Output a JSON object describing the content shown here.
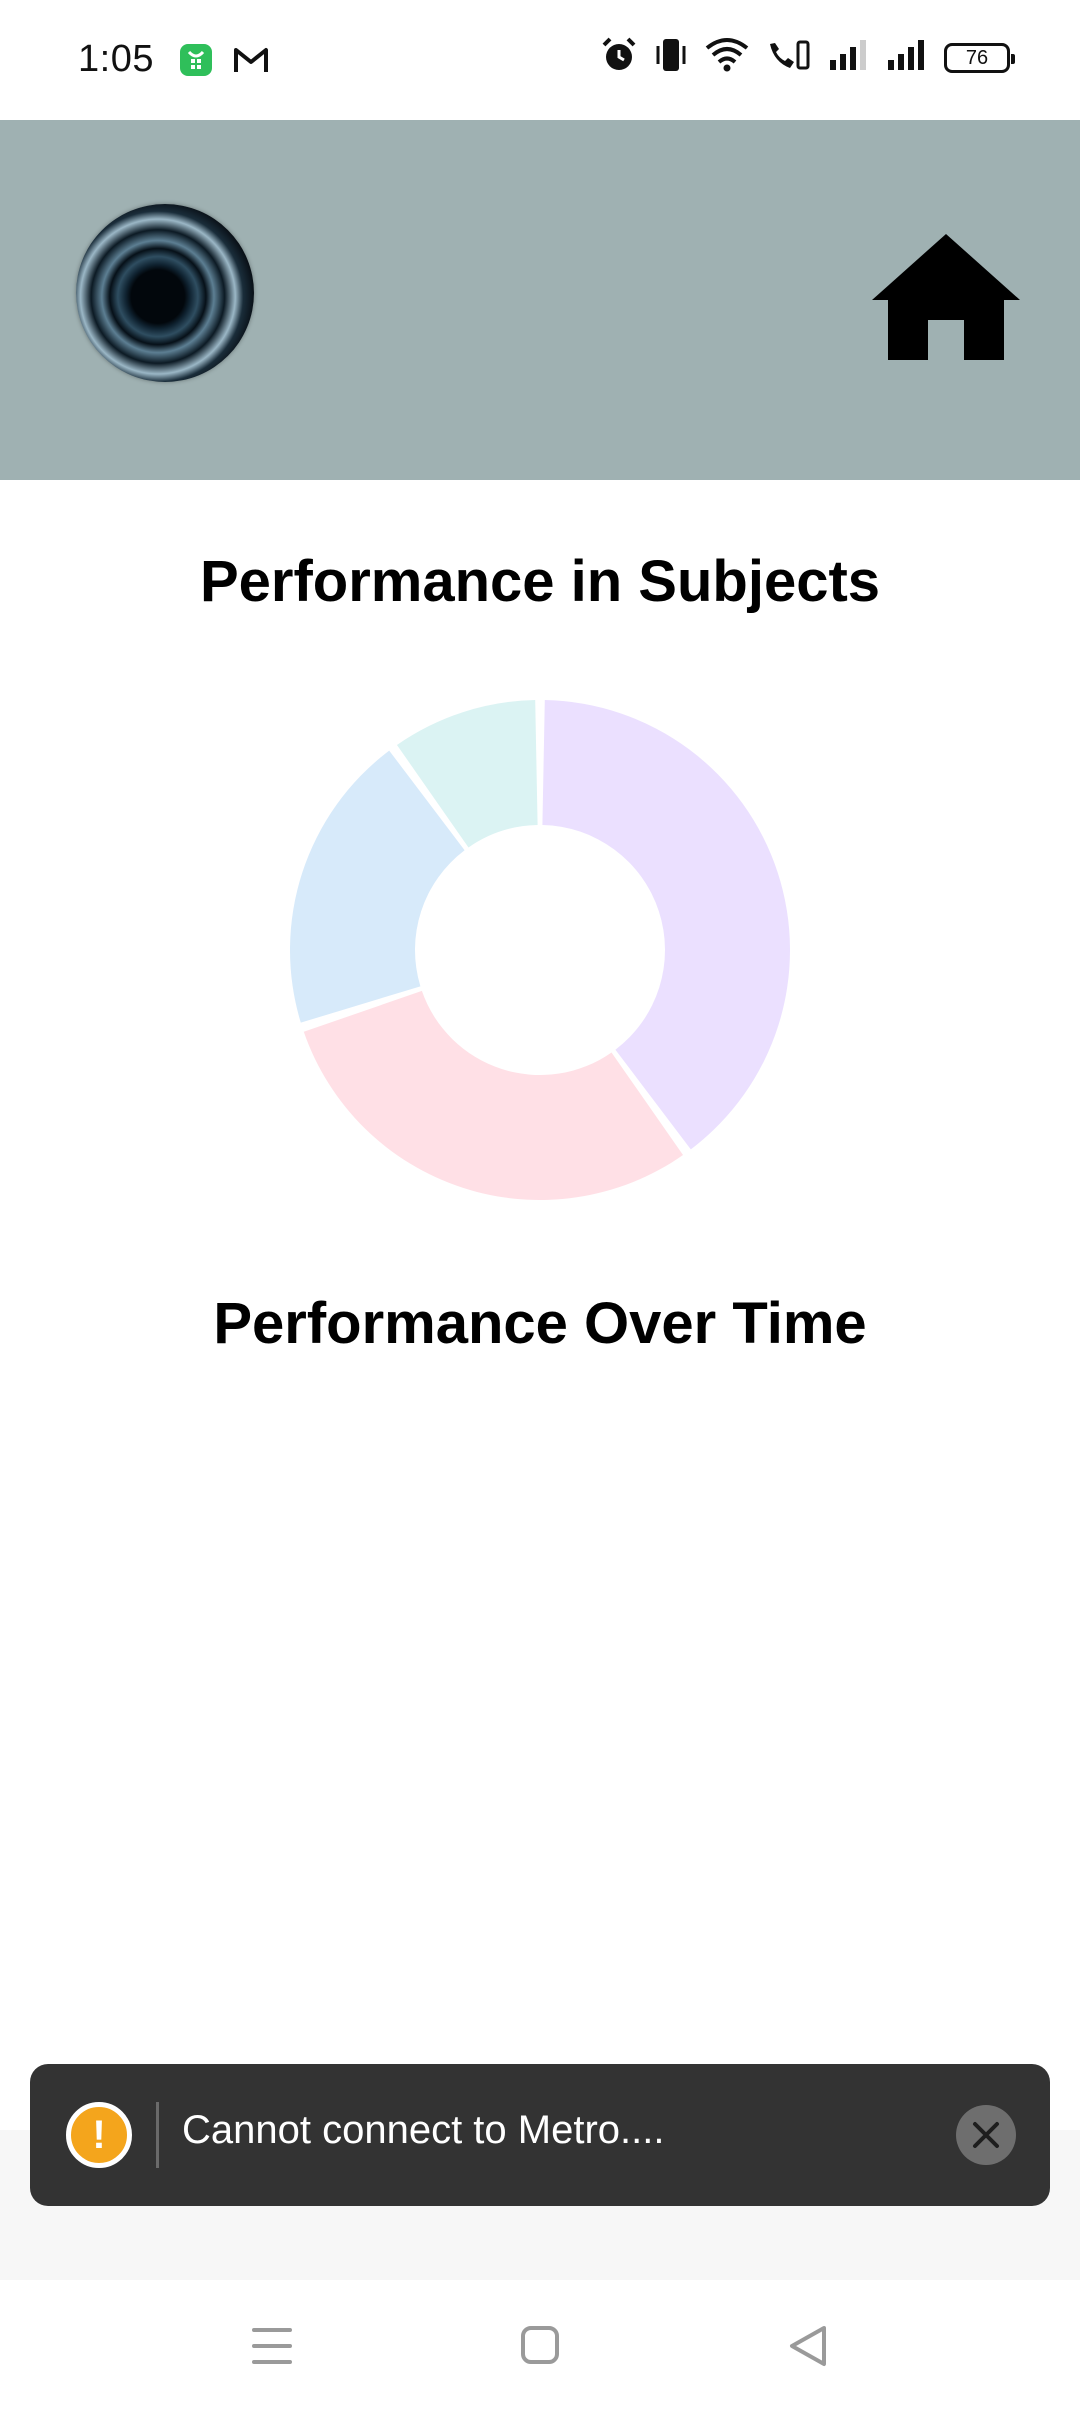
{
  "status_bar": {
    "time": "1:05",
    "battery": "76",
    "left_icons": [
      "shopping-bag-icon",
      "gmail-icon"
    ],
    "right_icons": [
      "alarm-icon",
      "vibrate-icon",
      "wifi-icon",
      "wifi-calling-icon",
      "signal-icon",
      "signal-icon"
    ]
  },
  "header": {
    "background": "#9fb1b2",
    "logo": "swirl-logo",
    "home_icon": "home-icon"
  },
  "sections": {
    "subjects_title": "Performance in Subjects",
    "time_title": "Performance Over Time"
  },
  "chart_data": {
    "type": "pie",
    "variant": "donut",
    "title": "Performance in Subjects",
    "slices": [
      {
        "value": 40,
        "color": "#ebe0ff"
      },
      {
        "value": 30,
        "color": "#ffe0e6"
      },
      {
        "value": 20,
        "color": "#d7eafa"
      },
      {
        "value": 10,
        "color": "#dbf3f3"
      }
    ]
  },
  "toast": {
    "message": "Cannot connect to Metro....",
    "warning_icon": "warning-icon",
    "close_icon": "close-icon",
    "background": "#333333",
    "warning_color": "#f4a51c"
  },
  "nav_bar": {
    "icons": [
      "menu-icon",
      "home-square-icon",
      "back-triangle-icon"
    ]
  }
}
